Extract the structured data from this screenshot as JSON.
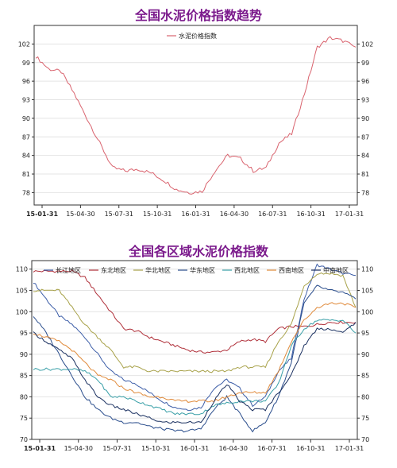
{
  "chart_data": [
    {
      "type": "line",
      "title": "全国水泥价格指数趋势",
      "ylim": [
        76,
        105
      ],
      "yticks": [
        78,
        81,
        84,
        87,
        90,
        93,
        96,
        99,
        102
      ],
      "xticks": [
        "15-01-31",
        "15-04-30",
        "15-07-31",
        "15-10-31",
        "16-01-31",
        "16-04-30",
        "16-07-31",
        "16-10-31",
        "17-01-31"
      ],
      "legend_position": "top-center",
      "series": [
        {
          "name": "水泥价格指数",
          "color": "#d9636e",
          "x": [
            "15-01-31",
            "15-02-28",
            "15-03-31",
            "15-04-30",
            "15-05-31",
            "15-06-30",
            "15-07-31",
            "15-08-31",
            "15-09-30",
            "15-10-31",
            "15-11-30",
            "15-12-31",
            "16-01-31",
            "16-02-29",
            "16-03-31",
            "16-04-30",
            "16-05-31",
            "16-06-30",
            "16-07-31",
            "16-08-31",
            "16-09-30",
            "16-10-31",
            "16-11-30",
            "16-12-31",
            "17-01-31",
            "17-02-28"
          ],
          "values": [
            100,
            98,
            97.5,
            94,
            90,
            86,
            82,
            81.5,
            81.8,
            81.2,
            80,
            78.5,
            78,
            78.2,
            81.5,
            84,
            83.5,
            81.5,
            82,
            86,
            87.5,
            94,
            101.5,
            103,
            102.5,
            101.5
          ]
        }
      ]
    },
    {
      "type": "line",
      "title": "全国各区域水泥价格指数",
      "ylim": [
        70,
        112
      ],
      "yticks": [
        70,
        75,
        80,
        85,
        90,
        95,
        100,
        105,
        110
      ],
      "xticks": [
        "15-01-31",
        "15-04-30",
        "15-07-31",
        "15-10-31",
        "16-01-31",
        "16-04-30",
        "16-07-31",
        "16-10-31",
        "17-01-31"
      ],
      "legend_position": "top",
      "x": [
        "15-01-31",
        "15-02-28",
        "15-03-31",
        "15-04-30",
        "15-05-31",
        "15-06-30",
        "15-07-31",
        "15-08-31",
        "15-09-30",
        "15-10-31",
        "15-11-30",
        "15-12-31",
        "16-01-31",
        "16-02-29",
        "16-03-31",
        "16-04-30",
        "16-05-31",
        "16-06-30",
        "16-07-31",
        "16-08-31",
        "16-09-30",
        "16-10-31",
        "16-11-30",
        "16-12-31",
        "17-01-31",
        "17-02-28"
      ],
      "series": [
        {
          "name": "长江地区",
          "color": "#3d5ea8",
          "values": [
            107,
            103,
            99,
            97,
            94,
            90,
            86,
            84,
            83,
            81,
            79,
            77.5,
            77,
            77.5,
            82,
            84,
            82,
            78,
            80,
            86,
            89,
            103,
            111,
            110,
            109,
            108.5
          ]
        },
        {
          "name": "东北地区",
          "color": "#b0303a",
          "values": [
            109.5,
            109.5,
            109.5,
            109.5,
            108,
            104,
            100,
            96,
            95.5,
            94,
            93,
            92,
            91,
            90.5,
            90.5,
            91,
            93,
            93.5,
            93,
            96,
            96.5,
            96.5,
            97,
            97.5,
            97.5,
            97.5
          ]
        },
        {
          "name": "华北地区",
          "color": "#a8a24a",
          "values": [
            105,
            105,
            105,
            101,
            97,
            94,
            91,
            87,
            87,
            86,
            86,
            86,
            86,
            86,
            86,
            86,
            87,
            87,
            87,
            93,
            97,
            106,
            109,
            109,
            108.5,
            101
          ]
        },
        {
          "name": "华东地区",
          "color": "#2a4d8c",
          "values": [
            99,
            95,
            90,
            85,
            80,
            77,
            75,
            74,
            74,
            73,
            72.5,
            72,
            72,
            72.5,
            77,
            80,
            76,
            72,
            74,
            80,
            88,
            102,
            106,
            105,
            104.5,
            103
          ]
        },
        {
          "name": "西北地区",
          "color": "#3aa0a8",
          "values": [
            86.5,
            86.5,
            86.5,
            86.5,
            86,
            84,
            80,
            80,
            79,
            78,
            77,
            76,
            76,
            76,
            78,
            78.5,
            79,
            79,
            79,
            83,
            92,
            96,
            98,
            98,
            98,
            95
          ]
        },
        {
          "name": "西南地区",
          "color": "#e08a3a",
          "values": [
            95,
            94,
            93,
            91,
            88,
            85,
            84,
            82,
            81,
            80,
            80,
            79,
            79,
            79,
            79,
            80,
            81,
            81,
            81,
            86,
            93,
            98,
            101,
            102,
            102,
            101
          ]
        },
        {
          "name": "中南地区",
          "color": "#1a3060",
          "values": [
            95,
            93,
            91,
            89,
            84,
            80,
            78,
            77,
            76,
            75,
            74,
            74,
            74,
            74,
            79,
            83,
            79,
            77,
            77,
            81,
            85,
            92,
            96,
            96,
            95,
            97.5
          ]
        }
      ]
    }
  ]
}
